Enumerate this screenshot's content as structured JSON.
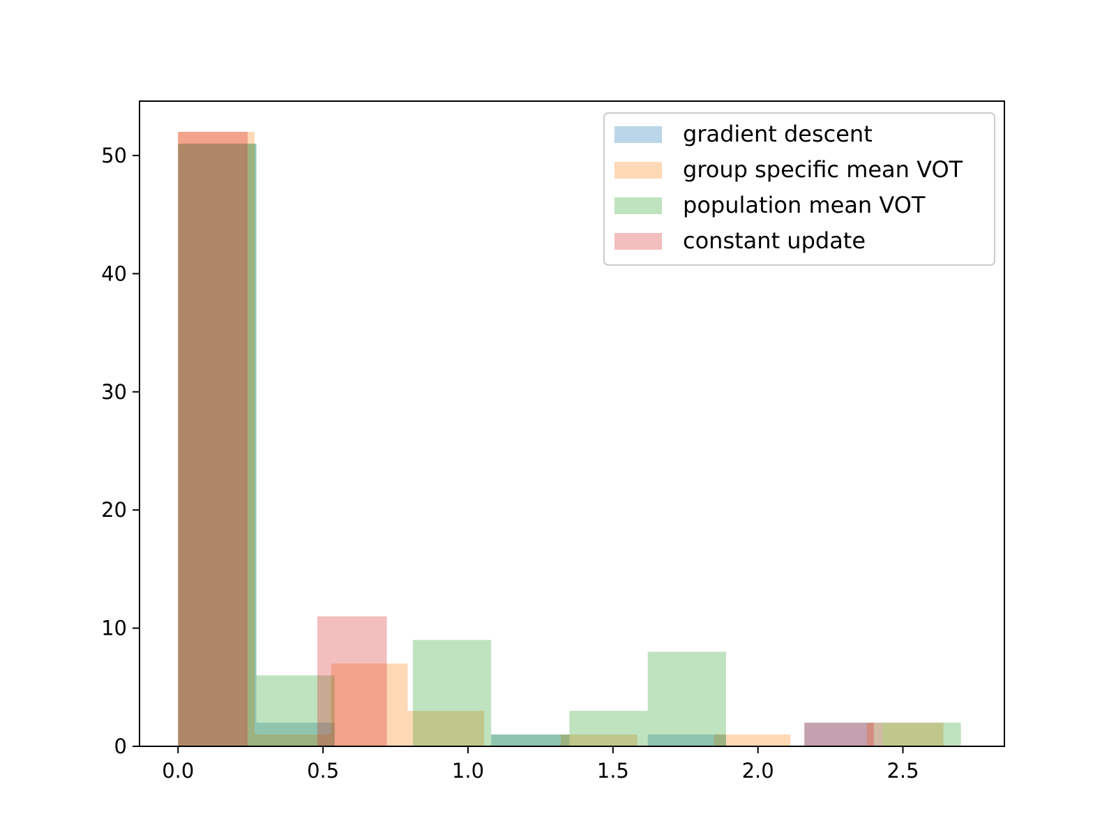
{
  "chart_data": {
    "type": "histogram",
    "title": "",
    "xlabel": "",
    "ylabel": "",
    "xlim": [
      -0.133,
      2.85
    ],
    "ylim": [
      0,
      54.6
    ],
    "xticks": [
      0.0,
      0.5,
      1.0,
      1.5,
      2.0,
      2.5
    ],
    "xtick_labels": [
      "0.0",
      "0.5",
      "1.0",
      "1.5",
      "2.0",
      "2.5"
    ],
    "yticks": [
      0,
      10,
      20,
      30,
      40,
      50
    ],
    "ytick_labels": [
      "0",
      "10",
      "20",
      "30",
      "40",
      "50"
    ],
    "legend_position": "top-right",
    "bar_opacity": 0.3,
    "series": [
      {
        "name": "gradient descent",
        "color": "#1f77b4",
        "bins": [
          0,
          0.27,
          0.54,
          0.81,
          1.08,
          1.35,
          1.62,
          1.89,
          2.16,
          2.43,
          2.7
        ],
        "counts": [
          51,
          2,
          0,
          0,
          1,
          0,
          1,
          0,
          2,
          0
        ]
      },
      {
        "name": "group specific mean VOT",
        "color": "#ff7f0e",
        "bins": [
          0,
          0.264,
          0.528,
          0.792,
          1.056,
          1.32,
          1.584,
          1.848,
          2.112,
          2.376,
          2.64
        ],
        "counts": [
          52,
          1,
          7,
          3,
          0,
          1,
          0,
          1,
          0,
          2
        ]
      },
      {
        "name": "population mean VOT",
        "color": "#2ca02c",
        "bins": [
          0,
          0.27,
          0.54,
          0.81,
          1.08,
          1.35,
          1.62,
          1.89,
          2.16,
          2.43,
          2.7
        ],
        "counts": [
          51,
          6,
          0,
          9,
          1,
          3,
          8,
          0,
          0,
          2
        ]
      },
      {
        "name": "constant update",
        "color": "#d62728",
        "bins": [
          0,
          0.24,
          0.48,
          0.72,
          0.96,
          1.2,
          1.44,
          1.68,
          1.92,
          2.16,
          2.4
        ],
        "counts": [
          52,
          0,
          11,
          0,
          0,
          0,
          0,
          0,
          0,
          2
        ]
      }
    ]
  }
}
